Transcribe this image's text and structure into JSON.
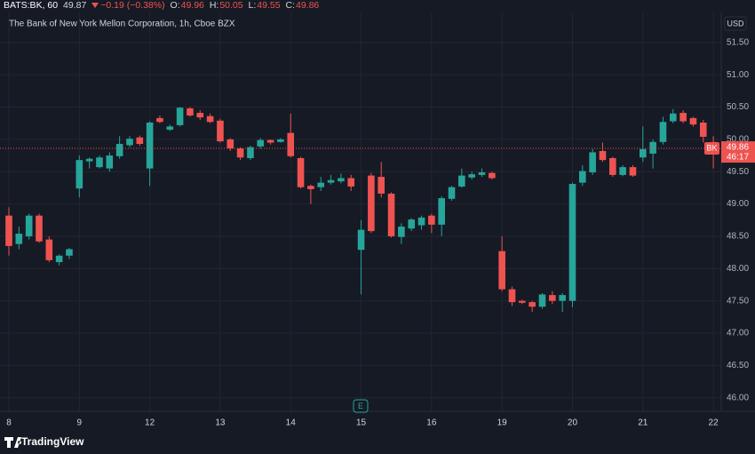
{
  "header": {
    "symbol": "BATS:BK, 60",
    "last": "49.87",
    "change": "−0.19 (−0.38%)",
    "o_label": "O:",
    "open": "49.96",
    "h_label": "H:",
    "high": "50.05",
    "l_label": "L:",
    "low": "49.55",
    "c_label": "C:",
    "close": "49.86"
  },
  "chart_data": {
    "type": "candlestick",
    "title": "The Bank of New York Mellon Corporation, 1h, Cboe BZX",
    "currency": "USD",
    "up_color": "#26a69a",
    "down_color": "#ef5350",
    "grid": true,
    "categories": [
      "8",
      null,
      null,
      null,
      null,
      null,
      null,
      "9",
      null,
      null,
      null,
      null,
      null,
      null,
      "12",
      null,
      null,
      null,
      null,
      null,
      null,
      "13",
      null,
      null,
      null,
      null,
      null,
      null,
      "14",
      null,
      null,
      null,
      null,
      null,
      null,
      "15",
      null,
      null,
      null,
      null,
      null,
      null,
      "16",
      null,
      null,
      null,
      null,
      null,
      null,
      "19",
      null,
      null,
      null,
      null,
      null,
      null,
      "20",
      null,
      null,
      null,
      null,
      null,
      null,
      "21",
      null,
      null,
      null,
      null,
      null,
      null,
      "22"
    ],
    "open": [
      48.82,
      48.38,
      48.5,
      48.82,
      48.45,
      48.1,
      48.2,
      49.24,
      49.66,
      49.57,
      49.55,
      49.74,
      49.91,
      50.03,
      49.55,
      50.33,
      50.15,
      50.22,
      50.48,
      50.41,
      50.36,
      50.29,
      50.0,
      49.86,
      49.71,
      49.89,
      49.99,
      49.96,
      50.1,
      49.71,
      49.28,
      49.26,
      49.33,
      49.35,
      49.4,
      48.29,
      49.44,
      49.42,
      49.16,
      48.49,
      48.62,
      48.67,
      48.82,
      48.68,
      49.08,
      49.27,
      49.41,
      49.45,
      49.48,
      48.27,
      47.68,
      47.5,
      47.48,
      47.41,
      47.59,
      47.5,
      47.5,
      49.33,
      49.49,
      49.82,
      49.71,
      49.45,
      49.57,
      49.72,
      49.78,
      49.96,
      50.28,
      50.41,
      50.33,
      50.26,
      49.96
    ],
    "high": [
      48.95,
      48.65,
      48.85,
      48.85,
      48.5,
      48.22,
      48.32,
      49.75,
      49.72,
      49.75,
      49.8,
      50.05,
      50.05,
      50.06,
      50.28,
      50.37,
      50.23,
      50.5,
      50.5,
      50.45,
      50.4,
      50.32,
      50.02,
      49.88,
      49.9,
      50.02,
      50.0,
      50.02,
      50.4,
      49.73,
      49.3,
      49.42,
      49.45,
      49.47,
      49.45,
      48.75,
      49.48,
      49.65,
      49.18,
      48.7,
      48.78,
      48.82,
      48.85,
      49.12,
      49.28,
      49.55,
      49.5,
      49.55,
      49.5,
      48.5,
      47.72,
      47.52,
      47.5,
      47.62,
      47.65,
      47.62,
      49.33,
      49.6,
      49.85,
      49.95,
      49.73,
      49.6,
      49.6,
      50.2,
      50.0,
      50.35,
      50.47,
      50.45,
      50.35,
      50.3,
      50.05
    ],
    "low": [
      48.2,
      48.3,
      48.45,
      48.4,
      48.1,
      48.05,
      48.15,
      49.1,
      49.55,
      49.55,
      49.5,
      49.7,
      49.88,
      49.9,
      49.28,
      50.25,
      50.13,
      50.2,
      50.35,
      50.3,
      50.25,
      49.95,
      49.82,
      49.68,
      49.68,
      49.86,
      49.92,
      49.95,
      49.72,
      49.24,
      49.0,
      49.2,
      49.3,
      49.32,
      49.2,
      47.6,
      48.55,
      49.1,
      48.48,
      48.38,
      48.58,
      48.6,
      48.55,
      48.5,
      49.05,
      49.25,
      49.38,
      49.42,
      49.38,
      47.65,
      47.42,
      47.45,
      47.33,
      47.38,
      47.45,
      47.33,
      47.4,
      49.28,
      49.45,
      49.65,
      49.42,
      49.43,
      49.42,
      49.65,
      49.55,
      49.92,
      50.25,
      50.25,
      50.2,
      49.95,
      49.55
    ],
    "close": [
      48.35,
      48.54,
      48.82,
      48.42,
      48.13,
      48.2,
      48.3,
      49.68,
      49.7,
      49.72,
      49.75,
      49.93,
      50.01,
      49.93,
      50.26,
      50.27,
      50.2,
      50.49,
      50.37,
      50.34,
      50.27,
      49.97,
      49.86,
      49.72,
      49.88,
      49.99,
      49.95,
      50.0,
      49.74,
      49.26,
      49.23,
      49.33,
      49.37,
      49.4,
      49.27,
      48.6,
      48.58,
      49.16,
      48.5,
      48.65,
      48.76,
      48.79,
      48.68,
      49.09,
      49.26,
      49.44,
      49.46,
      49.49,
      49.4,
      47.68,
      47.48,
      47.47,
      47.41,
      47.6,
      47.5,
      47.59,
      49.31,
      49.51,
      49.8,
      49.68,
      49.45,
      49.57,
      49.44,
      49.85,
      49.96,
      50.27,
      50.4,
      50.28,
      50.23,
      50.04,
      49.86
    ],
    "ylim": [
      45.79,
      51.91
    ],
    "yticks": [
      {
        "value": 46,
        "label": "46.00"
      },
      {
        "value": 46.5,
        "label": "46.50"
      },
      {
        "value": 47,
        "label": "47.00"
      },
      {
        "value": 47.5,
        "label": "47.50"
      },
      {
        "value": 48,
        "label": "48.00"
      },
      {
        "value": 48.5,
        "label": "48.50"
      },
      {
        "value": 49,
        "label": "49.00"
      },
      {
        "value": 49.5,
        "label": "49.50"
      },
      {
        "value": 50,
        "label": "50.00"
      },
      {
        "value": 50.5,
        "label": "50.50"
      },
      {
        "value": 51,
        "label": "51.00"
      },
      {
        "value": 51.5,
        "label": "51.50"
      }
    ]
  },
  "price_tag": {
    "symbol": "BK",
    "countdown": "46:17"
  },
  "earnings_marker": "E",
  "footer": {
    "brand": "TradingView"
  }
}
